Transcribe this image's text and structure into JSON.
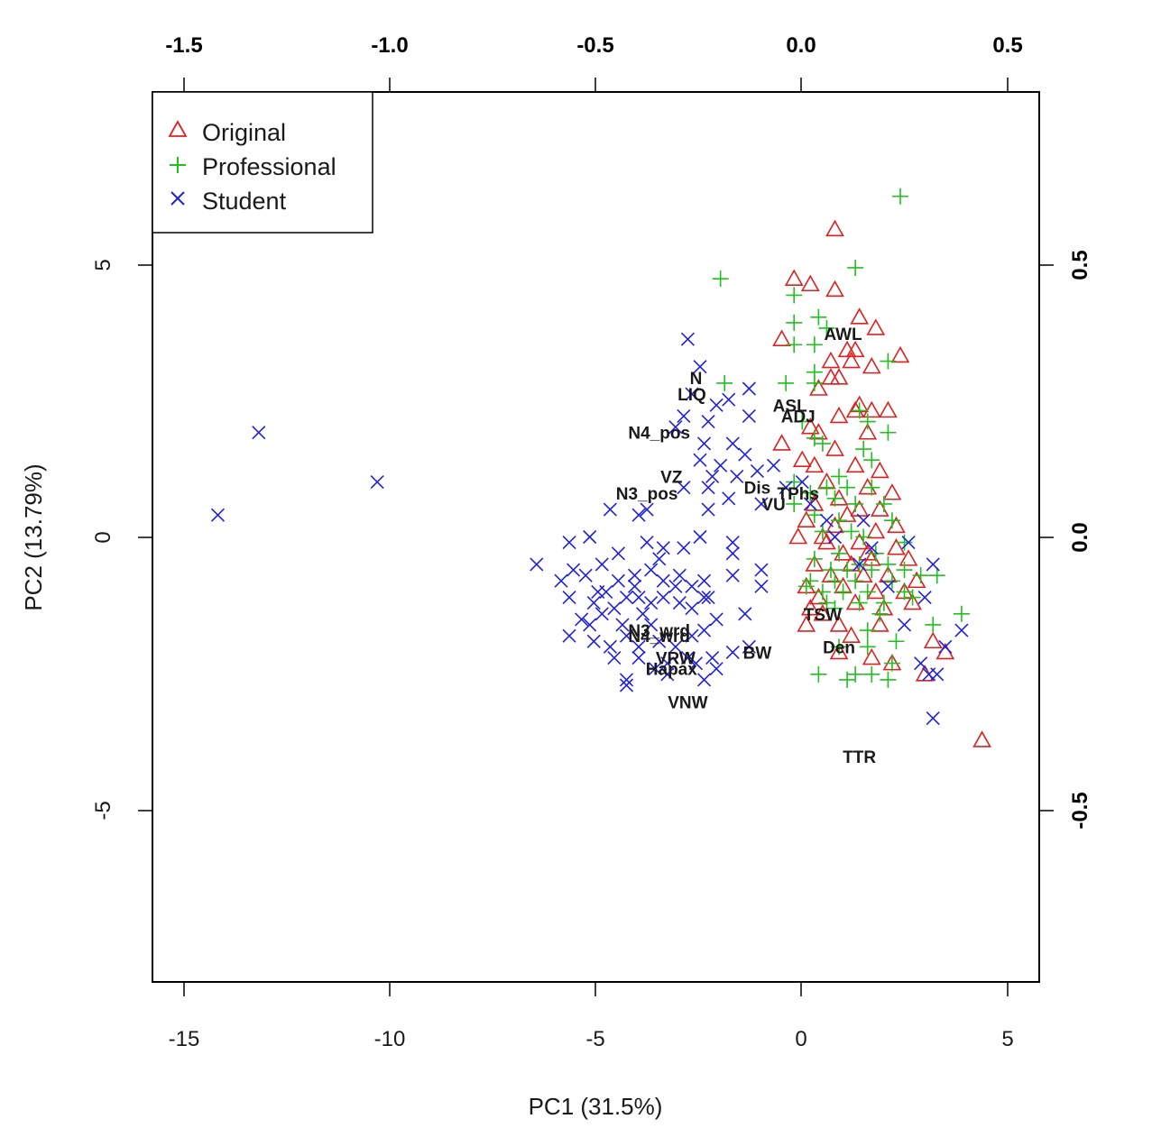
{
  "chart_data": {
    "type": "scatter",
    "subtype": "pca-biplot",
    "title": "",
    "xlabel": "PC1 (31.5%)",
    "ylabel": "PC2 (13.79%)",
    "xlim": [
      -15.8,
      5.9
    ],
    "ylim": [
      -8.1,
      8.1
    ],
    "x_ticks": [
      "-15",
      "-10",
      "-5",
      "0",
      "5"
    ],
    "y_ticks": [
      "5",
      "0",
      "-5"
    ],
    "top_axis": {
      "lim": [
        -1.58,
        0.59
      ],
      "ticks": [
        "-1.5",
        "-1.0",
        "-0.5",
        "0.0",
        "0.5"
      ]
    },
    "right_axis": {
      "lim": [
        -0.81,
        0.81
      ],
      "ticks": [
        "0.5",
        "0.0",
        "-0.5"
      ]
    },
    "grid": false,
    "legend_position": "top-left",
    "series": [
      {
        "name": "Original",
        "marker": "triangle",
        "color": "#DF2020",
        "points": [
          [
            0.9,
            5.6
          ],
          [
            -0.1,
            4.7
          ],
          [
            0.3,
            4.6
          ],
          [
            0.9,
            4.5
          ],
          [
            1.5,
            4.0
          ],
          [
            1.9,
            3.8
          ],
          [
            -0.4,
            3.6
          ],
          [
            1.2,
            3.4
          ],
          [
            1.4,
            3.4
          ],
          [
            2.5,
            3.3
          ],
          [
            0.8,
            3.2
          ],
          [
            1.3,
            3.2
          ],
          [
            1.8,
            3.1
          ],
          [
            0.8,
            2.9
          ],
          [
            1.0,
            2.9
          ],
          [
            0.5,
            2.7
          ],
          [
            1.5,
            2.4
          ],
          [
            1.8,
            2.3
          ],
          [
            2.2,
            2.3
          ],
          [
            1.4,
            2.3
          ],
          [
            1.0,
            2.2
          ],
          [
            0.3,
            2.0
          ],
          [
            1.7,
            1.9
          ],
          [
            -0.4,
            1.7
          ],
          [
            0.9,
            1.6
          ],
          [
            0.1,
            1.4
          ],
          [
            0.4,
            1.3
          ],
          [
            1.4,
            1.3
          ],
          [
            2.0,
            1.2
          ],
          [
            0.7,
            1.0
          ],
          [
            1.7,
            0.9
          ],
          [
            2.3,
            0.8
          ],
          [
            1.0,
            0.7
          ],
          [
            0.4,
            0.6
          ],
          [
            1.5,
            0.5
          ],
          [
            2.0,
            0.5
          ],
          [
            0.2,
            0.3
          ],
          [
            1.2,
            0.4
          ],
          [
            0.9,
            0.2
          ],
          [
            2.4,
            0.2
          ],
          [
            0.0,
            0.0
          ],
          [
            0.7,
            -0.1
          ],
          [
            1.5,
            -0.1
          ],
          [
            2.4,
            -0.2
          ],
          [
            1.1,
            -0.3
          ],
          [
            1.8,
            -0.4
          ],
          [
            0.4,
            -0.5
          ],
          [
            1.3,
            -0.5
          ],
          [
            2.7,
            -0.4
          ],
          [
            0.8,
            -0.7
          ],
          [
            1.6,
            -0.7
          ],
          [
            2.2,
            -0.7
          ],
          [
            2.9,
            -0.8
          ],
          [
            0.2,
            -0.9
          ],
          [
            1.1,
            -0.9
          ],
          [
            1.9,
            -1.0
          ],
          [
            2.6,
            -1.0
          ],
          [
            0.5,
            -1.1
          ],
          [
            1.4,
            -1.2
          ],
          [
            0.2,
            -1.6
          ],
          [
            1.0,
            -1.6
          ],
          [
            2.0,
            -1.6
          ],
          [
            1.0,
            -2.1
          ],
          [
            1.8,
            -2.2
          ],
          [
            2.3,
            -2.3
          ],
          [
            3.3,
            -1.9
          ],
          [
            3.6,
            -2.1
          ],
          [
            3.1,
            -2.5
          ],
          [
            4.5,
            -3.7
          ],
          [
            0.3,
            -1.3
          ],
          [
            1.7,
            -0.3
          ],
          [
            0.6,
            0.0
          ],
          [
            2.1,
            -1.3
          ],
          [
            1.3,
            -1.8
          ],
          [
            0.5,
            1.9
          ],
          [
            1.9,
            0.1
          ],
          [
            2.8,
            -1.2
          ],
          [
            0.6,
            -1.4
          ]
        ]
      },
      {
        "name": "Professional",
        "marker": "plus",
        "color": "#1FC11F",
        "points": [
          [
            2.5,
            6.2
          ],
          [
            1.4,
            4.9
          ],
          [
            -1.9,
            4.7
          ],
          [
            -0.1,
            4.4
          ],
          [
            0.5,
            4.0
          ],
          [
            -0.1,
            3.9
          ],
          [
            0.7,
            3.8
          ],
          [
            0.4,
            3.5
          ],
          [
            -0.1,
            3.5
          ],
          [
            2.2,
            3.2
          ],
          [
            0.4,
            3.0
          ],
          [
            0.4,
            2.8
          ],
          [
            -0.3,
            2.8
          ],
          [
            -1.8,
            2.8
          ],
          [
            1.5,
            2.3
          ],
          [
            0.1,
            2.1
          ],
          [
            1.7,
            2.1
          ],
          [
            2.2,
            1.9
          ],
          [
            0.4,
            1.8
          ],
          [
            0.6,
            1.7
          ],
          [
            1.6,
            1.6
          ],
          [
            1.8,
            1.4
          ],
          [
            1.0,
            1.1
          ],
          [
            -0.1,
            1.0
          ],
          [
            0.7,
            0.9
          ],
          [
            1.2,
            0.9
          ],
          [
            1.8,
            0.9
          ],
          [
            0.3,
            0.8
          ],
          [
            0.9,
            0.7
          ],
          [
            -0.1,
            0.6
          ],
          [
            1.4,
            0.6
          ],
          [
            2.1,
            0.6
          ],
          [
            0.4,
            0.4
          ],
          [
            1.0,
            0.3
          ],
          [
            2.3,
            0.3
          ],
          [
            0.6,
            0.1
          ],
          [
            1.6,
            0.0
          ],
          [
            2.6,
            -0.1
          ],
          [
            1.0,
            -0.3
          ],
          [
            1.9,
            -0.3
          ],
          [
            0.4,
            -0.4
          ],
          [
            1.5,
            -0.5
          ],
          [
            2.2,
            -0.5
          ],
          [
            0.8,
            -0.6
          ],
          [
            1.2,
            -0.6
          ],
          [
            1.8,
            -0.6
          ],
          [
            2.6,
            -0.6
          ],
          [
            0.3,
            -0.8
          ],
          [
            0.9,
            -0.8
          ],
          [
            1.4,
            -0.8
          ],
          [
            2.3,
            -0.8
          ],
          [
            3.0,
            -0.7
          ],
          [
            0.6,
            -1.0
          ],
          [
            1.1,
            -1.0
          ],
          [
            1.7,
            -1.0
          ],
          [
            2.6,
            -1.0
          ],
          [
            0.7,
            -1.2
          ],
          [
            1.5,
            -1.2
          ],
          [
            2.1,
            -1.2
          ],
          [
            3.4,
            -0.7
          ],
          [
            3.3,
            -1.6
          ],
          [
            4.0,
            -1.4
          ],
          [
            1.7,
            -1.7
          ],
          [
            2.4,
            -1.9
          ],
          [
            1.0,
            -2.0
          ],
          [
            1.7,
            -2.0
          ],
          [
            2.3,
            -2.3
          ],
          [
            0.5,
            -2.5
          ],
          [
            1.4,
            -2.5
          ],
          [
            1.8,
            -2.5
          ],
          [
            2.2,
            -2.6
          ],
          [
            1.2,
            -2.6
          ],
          [
            0.9,
            -1.3
          ],
          [
            0.2,
            -0.9
          ],
          [
            2.0,
            -1.4
          ],
          [
            1.3,
            0.1
          ],
          [
            2.8,
            -1.1
          ]
        ]
      },
      {
        "name": "Student",
        "marker": "cross",
        "color": "#2020DF",
        "points": [
          [
            -14.2,
            0.4
          ],
          [
            -13.2,
            1.9
          ],
          [
            -10.3,
            1.0
          ],
          [
            -2.7,
            3.6
          ],
          [
            -2.4,
            3.1
          ],
          [
            -2.6,
            2.6
          ],
          [
            -1.2,
            2.7
          ],
          [
            -1.7,
            2.5
          ],
          [
            -2.0,
            2.4
          ],
          [
            -1.2,
            2.2
          ],
          [
            -2.2,
            2.1
          ],
          [
            -2.8,
            2.2
          ],
          [
            -3.0,
            2.0
          ],
          [
            -2.3,
            1.7
          ],
          [
            -1.6,
            1.7
          ],
          [
            -2.4,
            1.4
          ],
          [
            -1.9,
            1.3
          ],
          [
            -1.3,
            1.5
          ],
          [
            -1.0,
            1.2
          ],
          [
            -2.1,
            1.1
          ],
          [
            -1.5,
            1.1
          ],
          [
            -2.8,
            0.9
          ],
          [
            -2.2,
            0.9
          ],
          [
            -1.7,
            0.7
          ],
          [
            -0.9,
            0.6
          ],
          [
            -2.2,
            0.5
          ],
          [
            -3.7,
            0.5
          ],
          [
            -4.6,
            0.5
          ],
          [
            -3.9,
            0.4
          ],
          [
            -5.1,
            0.0
          ],
          [
            -5.6,
            -0.1
          ],
          [
            -6.4,
            -0.5
          ],
          [
            -5.5,
            -0.6
          ],
          [
            -5.2,
            -0.7
          ],
          [
            -4.8,
            -0.5
          ],
          [
            -4.4,
            -0.3
          ],
          [
            -3.7,
            -0.1
          ],
          [
            -3.3,
            -0.2
          ],
          [
            -2.8,
            -0.2
          ],
          [
            -2.4,
            0.0
          ],
          [
            -1.6,
            -0.1
          ],
          [
            -1.6,
            -0.3
          ],
          [
            -0.9,
            -0.6
          ],
          [
            -5.6,
            -1.1
          ],
          [
            -5.0,
            -1.2
          ],
          [
            -4.7,
            -1.0
          ],
          [
            -4.4,
            -0.8
          ],
          [
            -4.0,
            -0.9
          ],
          [
            -3.6,
            -0.6
          ],
          [
            -3.3,
            -0.8
          ],
          [
            -2.9,
            -0.7
          ],
          [
            -2.6,
            -0.9
          ],
          [
            -2.3,
            -0.8
          ],
          [
            -2.2,
            -1.1
          ],
          [
            -1.6,
            -0.7
          ],
          [
            -0.9,
            -0.9
          ],
          [
            -5.3,
            -1.5
          ],
          [
            -5.1,
            -1.6
          ],
          [
            -4.8,
            -1.4
          ],
          [
            -4.5,
            -1.3
          ],
          [
            -4.2,
            -1.1
          ],
          [
            -3.9,
            -1.1
          ],
          [
            -3.6,
            -1.2
          ],
          [
            -3.3,
            -1.1
          ],
          [
            -2.9,
            -1.2
          ],
          [
            -2.6,
            -1.3
          ],
          [
            -2.3,
            -1.1
          ],
          [
            -1.3,
            -1.4
          ],
          [
            -5.6,
            -1.8
          ],
          [
            -5.0,
            -1.9
          ],
          [
            -4.6,
            -2.0
          ],
          [
            -4.2,
            -1.8
          ],
          [
            -3.9,
            -2.0
          ],
          [
            -3.4,
            -1.9
          ],
          [
            -3.0,
            -2.0
          ],
          [
            -2.6,
            -1.8
          ],
          [
            -2.3,
            -1.7
          ],
          [
            -4.5,
            -2.2
          ],
          [
            -3.9,
            -2.2
          ],
          [
            -3.5,
            -2.4
          ],
          [
            -3.2,
            -2.3
          ],
          [
            -2.7,
            -2.2
          ],
          [
            -2.1,
            -2.2
          ],
          [
            -2.0,
            -2.4
          ],
          [
            -1.6,
            -2.1
          ],
          [
            -1.2,
            -2.0
          ],
          [
            -4.2,
            -2.6
          ],
          [
            -4.2,
            -2.7
          ],
          [
            -3.2,
            -2.5
          ],
          [
            -2.3,
            -2.6
          ],
          [
            0.1,
            1.0
          ],
          [
            0.7,
            0.3
          ],
          [
            0.3,
            0.6
          ],
          [
            -0.6,
            1.3
          ],
          [
            -0.3,
            0.9
          ],
          [
            1.6,
            0.3
          ],
          [
            0.9,
            0.0
          ],
          [
            1.8,
            -0.2
          ],
          [
            2.7,
            -0.1
          ],
          [
            3.3,
            -0.5
          ],
          [
            1.5,
            -0.5
          ],
          [
            2.2,
            -0.9
          ],
          [
            3.1,
            -1.1
          ],
          [
            2.6,
            -1.6
          ],
          [
            3.6,
            -2.0
          ],
          [
            4.0,
            -1.7
          ],
          [
            3.0,
            -2.3
          ],
          [
            3.4,
            -2.5
          ],
          [
            3.2,
            -2.5
          ],
          [
            3.3,
            -3.3
          ],
          [
            -4.3,
            -1.6
          ],
          [
            -4.9,
            -1.0
          ],
          [
            -3.8,
            -1.4
          ],
          [
            -3.0,
            -0.9
          ],
          [
            -2.0,
            -1.5
          ],
          [
            -4.0,
            -0.7
          ],
          [
            -3.4,
            -0.4
          ],
          [
            -5.8,
            -0.8
          ],
          [
            -2.5,
            -2.3
          ],
          [
            -3.6,
            -1.6
          ]
        ]
      }
    ],
    "loadings": [
      {
        "label": "AWL",
        "x": 1.1,
        "y": 3.7
      },
      {
        "label": "N",
        "x": -2.5,
        "y": 2.9
      },
      {
        "label": "LIQ",
        "x": -2.6,
        "y": 2.6
      },
      {
        "label": "ASL",
        "x": -0.2,
        "y": 2.4
      },
      {
        "label": "ADJ",
        "x": 0.0,
        "y": 2.2
      },
      {
        "label": "N4_pos",
        "x": -3.4,
        "y": 1.9
      },
      {
        "label": "VZ",
        "x": -3.1,
        "y": 1.1
      },
      {
        "label": "N3_pos",
        "x": -3.7,
        "y": 0.8
      },
      {
        "label": "Dis",
        "x": -1.0,
        "y": 0.9
      },
      {
        "label": "TPhs",
        "x": 0.0,
        "y": 0.8
      },
      {
        "label": "VU",
        "x": -0.6,
        "y": 0.6
      },
      {
        "label": "TSW",
        "x": 0.6,
        "y": -1.4
      },
      {
        "label": "N3_wrd",
        "x": -3.4,
        "y": -1.7
      },
      {
        "label": "N4_wrd",
        "x": -3.4,
        "y": -1.8
      },
      {
        "label": "VRW",
        "x": -3.0,
        "y": -2.2
      },
      {
        "label": "BW",
        "x": -1.0,
        "y": -2.1
      },
      {
        "label": "Hapax",
        "x": -3.1,
        "y": -2.4
      },
      {
        "label": "Den",
        "x": 1.0,
        "y": -2.0
      },
      {
        "label": "VNW",
        "x": -2.7,
        "y": -3.0
      },
      {
        "label": "TTR",
        "x": 1.5,
        "y": -4.0
      }
    ]
  }
}
